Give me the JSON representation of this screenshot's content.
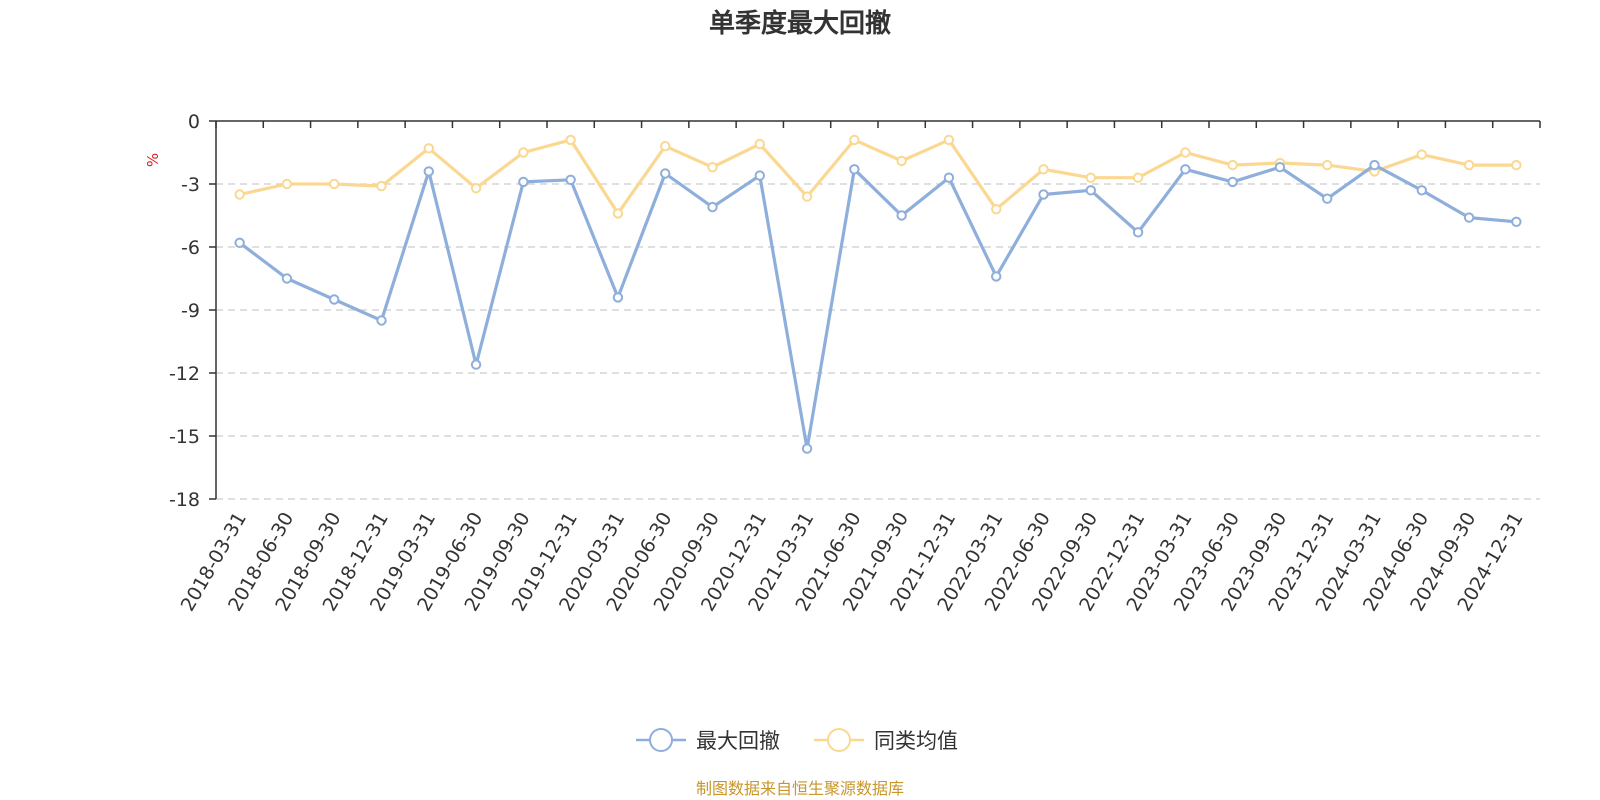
{
  "chart_data": {
    "type": "line",
    "title": "单季度最大回撤",
    "ylabel": "%",
    "ylim": [
      -18,
      0
    ],
    "yticks": [
      0,
      -3,
      -6,
      -9,
      -12,
      -15,
      -18
    ],
    "grid": true,
    "legend_position": "bottom-center",
    "categories": [
      "2018-03-31",
      "2018-06-30",
      "2018-09-30",
      "2018-12-31",
      "2019-03-31",
      "2019-06-30",
      "2019-09-30",
      "2019-12-31",
      "2020-03-31",
      "2020-06-30",
      "2020-09-30",
      "2020-12-31",
      "2021-03-31",
      "2021-06-30",
      "2021-09-30",
      "2021-12-31",
      "2022-03-31",
      "2022-06-30",
      "2022-09-30",
      "2022-12-31",
      "2023-03-31",
      "2023-06-30",
      "2023-09-30",
      "2023-12-31",
      "2024-03-31",
      "2024-06-30",
      "2024-09-30",
      "2024-12-31"
    ],
    "series": [
      {
        "name": "最大回撤",
        "color": "#8eaedb",
        "values": [
          -5.8,
          -7.5,
          -8.5,
          -9.5,
          -2.4,
          -11.6,
          -2.9,
          -2.8,
          -8.4,
          -2.5,
          -4.1,
          -2.6,
          -15.6,
          -2.3,
          -4.5,
          -2.7,
          -7.4,
          -3.5,
          -3.3,
          -5.3,
          -2.3,
          -2.9,
          -2.2,
          -3.7,
          -2.1,
          -3.3,
          -4.6,
          -4.8
        ]
      },
      {
        "name": "同类均值",
        "color": "#fbd891",
        "values": [
          -3.5,
          -3.0,
          -3.0,
          -3.1,
          -1.3,
          -3.2,
          -1.5,
          -0.9,
          -4.4,
          -1.2,
          -2.2,
          -1.1,
          -3.6,
          -0.9,
          -1.9,
          -0.9,
          -4.2,
          -2.3,
          -2.7,
          -2.7,
          -1.5,
          -2.1,
          -2.0,
          -2.1,
          -2.4,
          -1.6,
          -2.1,
          -2.1
        ]
      }
    ]
  },
  "source_note": "制图数据来自恒生聚源数据库"
}
